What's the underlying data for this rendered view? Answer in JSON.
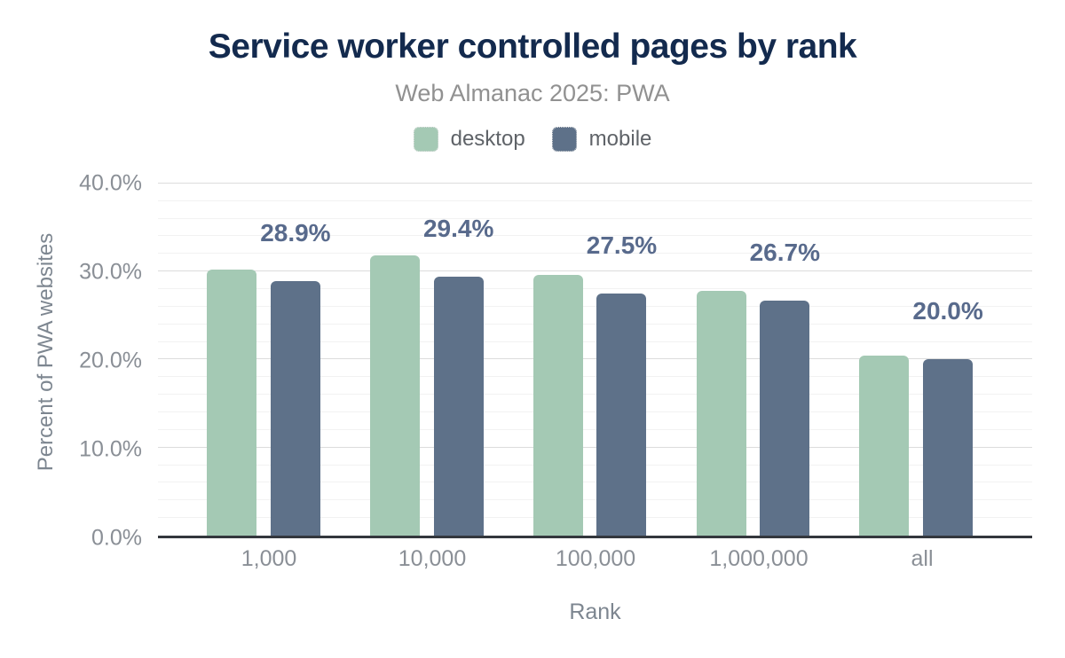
{
  "figure": {
    "title": "Service worker controlled pages by rank",
    "subtitle": "Web Almanac 2025: PWA"
  },
  "legend": {
    "items": [
      {
        "label": "desktop",
        "color": "#a4c9b4"
      },
      {
        "label": "mobile",
        "color": "#5e7189"
      }
    ]
  },
  "chart_data": {
    "type": "bar",
    "title": "Service worker controlled pages by rank",
    "subtitle": "Web Almanac 2025: PWA",
    "categories": [
      "1,000",
      "10,000",
      "100,000",
      "1,000,000",
      "all"
    ],
    "series": [
      {
        "name": "desktop",
        "color": "#a4c9b4",
        "values": [
          30.2,
          31.8,
          29.6,
          27.8,
          20.4
        ]
      },
      {
        "name": "mobile",
        "color": "#5e7189",
        "values": [
          28.9,
          29.4,
          27.5,
          26.7,
          20.0
        ],
        "data_labels": [
          "28.9%",
          "29.4%",
          "27.5%",
          "26.7%",
          "20.0%"
        ]
      }
    ],
    "xlabel": "Rank",
    "ylabel": "Percent of PWA websites",
    "ylim": [
      0,
      42
    ],
    "yticks": [
      {
        "value": 0,
        "label": "0.0%"
      },
      {
        "value": 10,
        "label": "10.0%"
      },
      {
        "value": 20,
        "label": "20.0%"
      },
      {
        "value": 30,
        "label": "30.0%"
      },
      {
        "value": 40,
        "label": "40.0%"
      }
    ],
    "grid": {
      "minor_step": 2,
      "major_step": 10,
      "top_line": 40,
      "grid_on": true
    },
    "legend_position": "top"
  },
  "style": {
    "title_color": "#132a4e",
    "subtitle_color": "#919191",
    "axis_label_color": "#8a8f96",
    "axis_title_color": "#7d8690",
    "legend_text_color": "#5f6368",
    "axis_line_color": "#33373d",
    "major_grid_color": "#dcdcdc",
    "minor_grid_color": "#f2f2f2",
    "data_label_color": "#586a8c",
    "background": "#ffffff"
  }
}
